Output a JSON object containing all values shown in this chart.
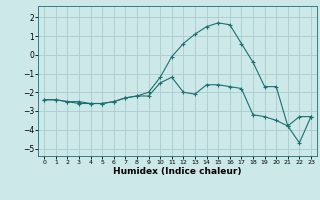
{
  "xlabel": "Humidex (Indice chaleur)",
  "bg_color": "#cce8e8",
  "grid_color": "#aacccc",
  "line_color": "#1a7070",
  "xlim": [
    -0.5,
    23.5
  ],
  "ylim": [
    -5.4,
    2.6
  ],
  "yticks": [
    -5,
    -4,
    -3,
    -2,
    -1,
    0,
    1,
    2
  ],
  "xticks": [
    0,
    1,
    2,
    3,
    4,
    5,
    6,
    7,
    8,
    9,
    10,
    11,
    12,
    13,
    14,
    15,
    16,
    17,
    18,
    19,
    20,
    21,
    22,
    23
  ],
  "series1_x": [
    0,
    1,
    2,
    3,
    4,
    5,
    6,
    7,
    8,
    9,
    10,
    11,
    12,
    13,
    14,
    15,
    16,
    17,
    18,
    19,
    20,
    21,
    22,
    23
  ],
  "series1_y": [
    -2.4,
    -2.4,
    -2.5,
    -2.6,
    -2.6,
    -2.6,
    -2.5,
    -2.3,
    -2.2,
    -2.2,
    -1.5,
    -1.2,
    -2.0,
    -2.1,
    -1.6,
    -1.6,
    -1.7,
    -1.8,
    -3.2,
    -3.3,
    -3.5,
    -3.8,
    -3.3,
    -3.3
  ],
  "series2_x": [
    0,
    1,
    2,
    3,
    4,
    5,
    6,
    7,
    8,
    9,
    10,
    11,
    12,
    13,
    14,
    15,
    16,
    17,
    18,
    19,
    20,
    21,
    22,
    23
  ],
  "series2_y": [
    -2.4,
    -2.4,
    -2.5,
    -2.5,
    -2.6,
    -2.6,
    -2.5,
    -2.3,
    -2.2,
    -2.0,
    -1.2,
    -0.1,
    0.6,
    1.1,
    1.5,
    1.7,
    1.6,
    0.6,
    -0.4,
    -1.7,
    -1.7,
    -3.8,
    -4.7,
    -3.3
  ],
  "marker": "+"
}
